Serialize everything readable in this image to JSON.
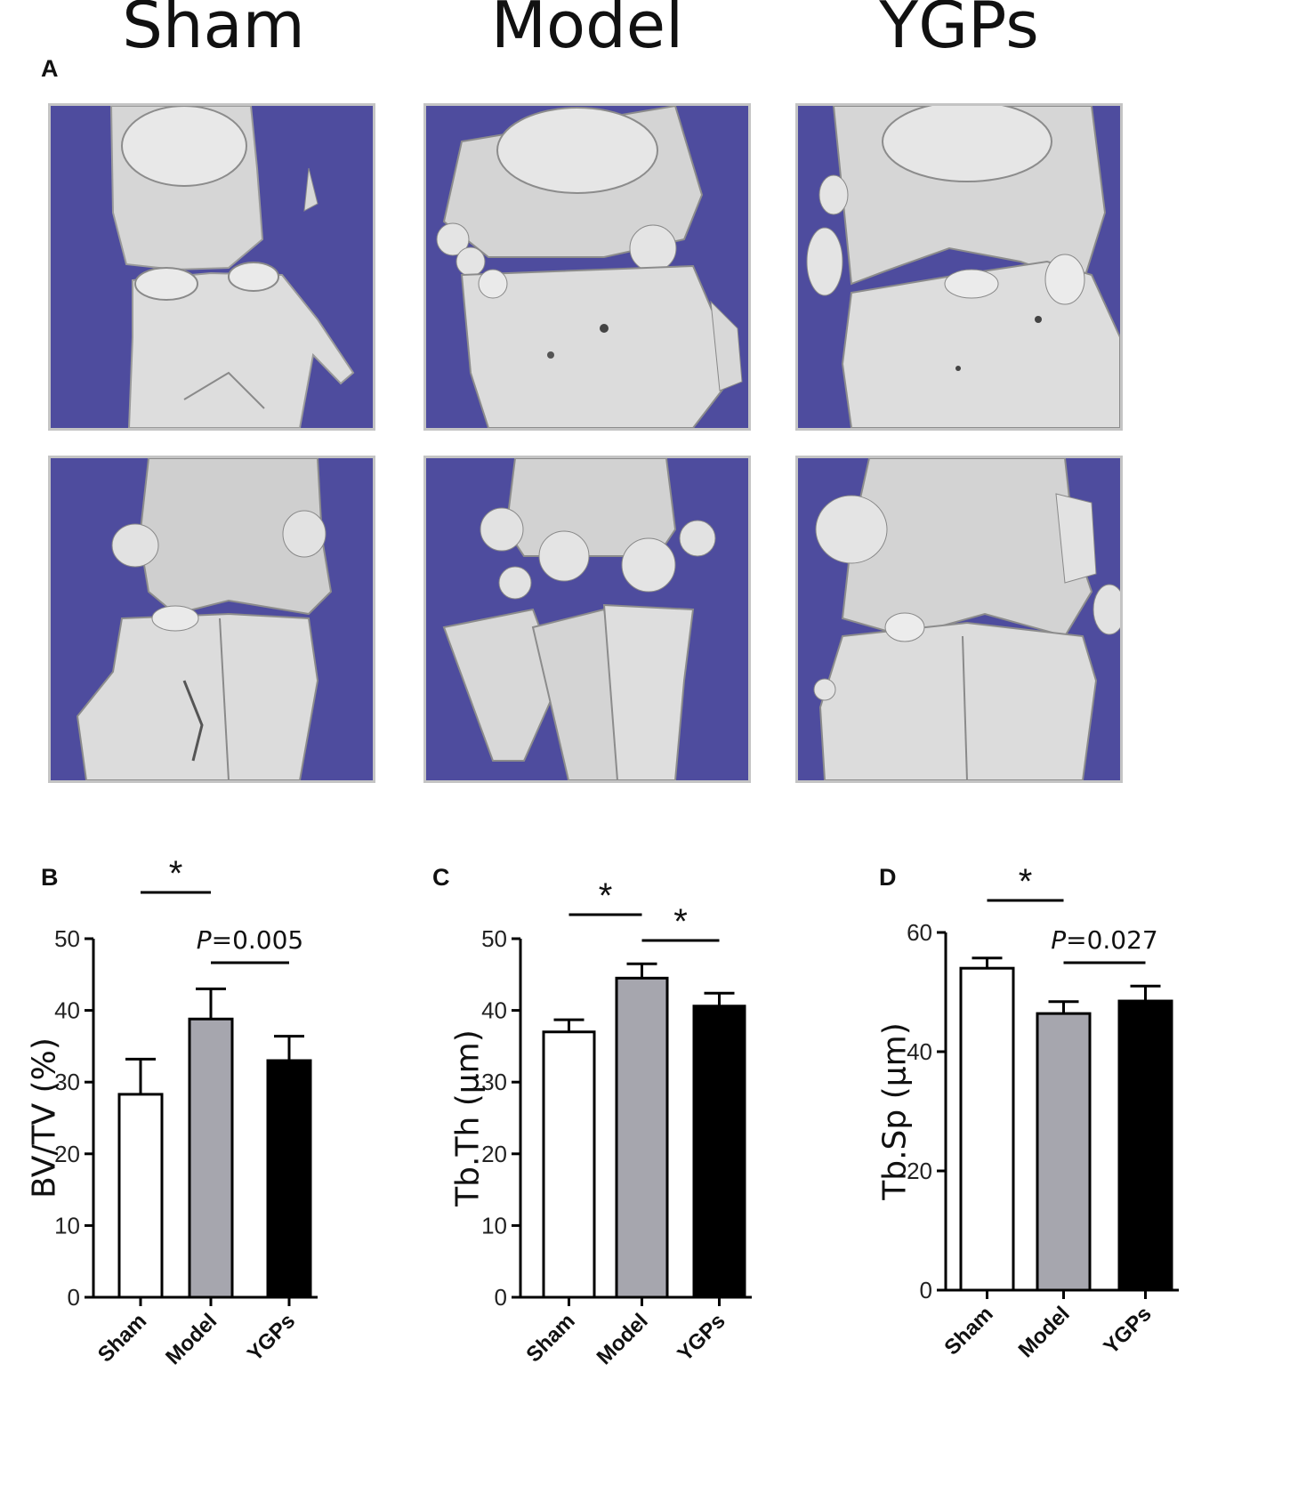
{
  "figure": {
    "column_titles": [
      "Sham",
      "Model",
      "YGPs"
    ],
    "panel_a_label": "A",
    "scan_background": "#4e4ca0",
    "bone_color": "#dcdcdc"
  },
  "chart_data": [
    {
      "type": "bar",
      "panel": "B",
      "categories": [
        "Sham",
        "Model",
        "YGPs"
      ],
      "values": [
        28.3,
        38.8,
        33.0
      ],
      "errors": [
        4.9,
        4.2,
        3.4
      ],
      "bar_colors": [
        "#ffffff",
        "#a6a6ae",
        "#000000"
      ],
      "ylabel": "BV/TV (%)",
      "ylim": [
        0,
        50
      ],
      "yticks": [
        0,
        10,
        20,
        30,
        40,
        50
      ],
      "annotations": [
        {
          "from": "Sham",
          "to": "Model",
          "label": "*"
        },
        {
          "from": "Model",
          "to": "YGPs",
          "label_italic": "P",
          "label_rest": "=0.005"
        }
      ]
    },
    {
      "type": "bar",
      "panel": "C",
      "categories": [
        "Sham",
        "Model",
        "YGPs"
      ],
      "values": [
        37.0,
        44.5,
        40.6
      ],
      "errors": [
        1.7,
        2.0,
        1.8
      ],
      "bar_colors": [
        "#ffffff",
        "#a6a6ae",
        "#000000"
      ],
      "ylabel": "Tb.Th (μm)",
      "ylim": [
        0,
        50
      ],
      "yticks": [
        0,
        10,
        20,
        30,
        40,
        50
      ],
      "annotations": [
        {
          "from": "Sham",
          "to": "Model",
          "label": "*"
        },
        {
          "from": "Model",
          "to": "YGPs",
          "label": "*"
        }
      ]
    },
    {
      "type": "bar",
      "panel": "D",
      "categories": [
        "Sham",
        "Model",
        "YGPs"
      ],
      "values": [
        54.0,
        46.4,
        48.5
      ],
      "errors": [
        1.7,
        2.0,
        2.5
      ],
      "bar_colors": [
        "#ffffff",
        "#a6a6ae",
        "#000000"
      ],
      "ylabel": "Tb.Sp (μm)",
      "ylim": [
        0,
        60
      ],
      "yticks": [
        0,
        20,
        40,
        60
      ],
      "annotations": [
        {
          "from": "Sham",
          "to": "Model",
          "label": "*"
        },
        {
          "from": "Model",
          "to": "YGPs",
          "label_italic": "P",
          "label_rest": "=0.027"
        }
      ]
    }
  ]
}
